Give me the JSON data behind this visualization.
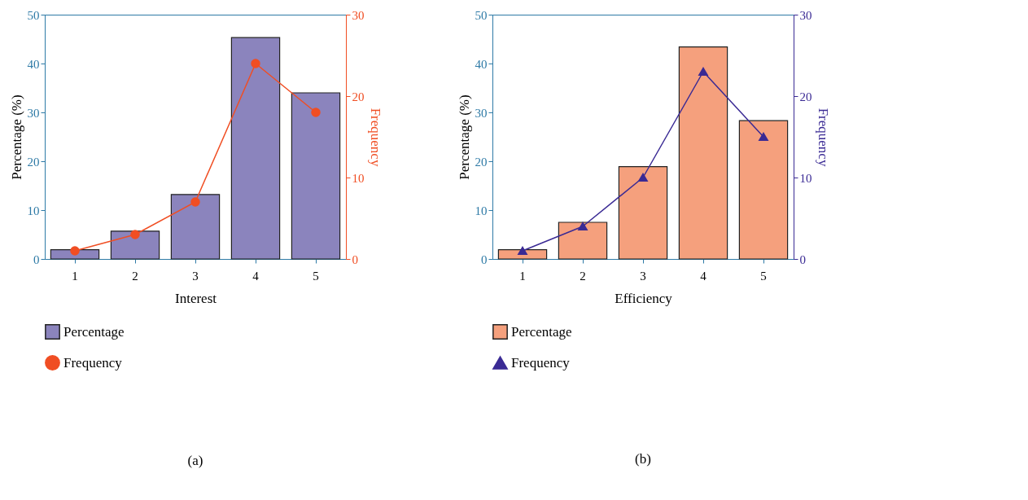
{
  "chart_data": [
    {
      "type": "bar",
      "title": "(a)",
      "xlabel": "Interest",
      "ylabel": "Percentage (%)",
      "y2label": "Frequency",
      "categories": [
        "1",
        "2",
        "3",
        "4",
        "5"
      ],
      "ylim": [
        0,
        50
      ],
      "yticks": [
        0,
        10,
        20,
        30,
        40,
        50
      ],
      "y2lim": [
        0,
        30
      ],
      "y2ticks": [
        0,
        10,
        20,
        30
      ],
      "legend": "bottom",
      "grid": false,
      "series": [
        {
          "name": "Percentage",
          "type": "bar",
          "color": "#8b84bd",
          "values": [
            1.9,
            5.7,
            13.2,
            45.3,
            34.0
          ]
        },
        {
          "name": "Frequency",
          "type": "line",
          "axis": "y2",
          "marker": "circle",
          "line_style": "solid",
          "color": "#f04e23",
          "values": [
            1,
            3,
            7,
            24,
            18
          ]
        }
      ]
    },
    {
      "type": "bar",
      "title": "(b)",
      "xlabel": "Efficiency",
      "ylabel": "Percentage (%)",
      "y2label": "Frequency",
      "categories": [
        "1",
        "2",
        "3",
        "4",
        "5"
      ],
      "ylim": [
        0,
        50
      ],
      "yticks": [
        0,
        10,
        20,
        30,
        40,
        50
      ],
      "y2lim": [
        0,
        30
      ],
      "y2ticks": [
        0,
        10,
        20,
        30
      ],
      "legend": "bottom",
      "grid": false,
      "series": [
        {
          "name": "Percentage",
          "type": "bar",
          "color": "#f5a07d",
          "values": [
            1.9,
            7.5,
            18.9,
            43.4,
            28.3
          ]
        },
        {
          "name": "Frequency",
          "type": "line",
          "axis": "y2",
          "marker": "triangle",
          "line_style": "solid",
          "color": "#3a2a94",
          "values": [
            1,
            4,
            10,
            23,
            15
          ]
        }
      ]
    }
  ]
}
